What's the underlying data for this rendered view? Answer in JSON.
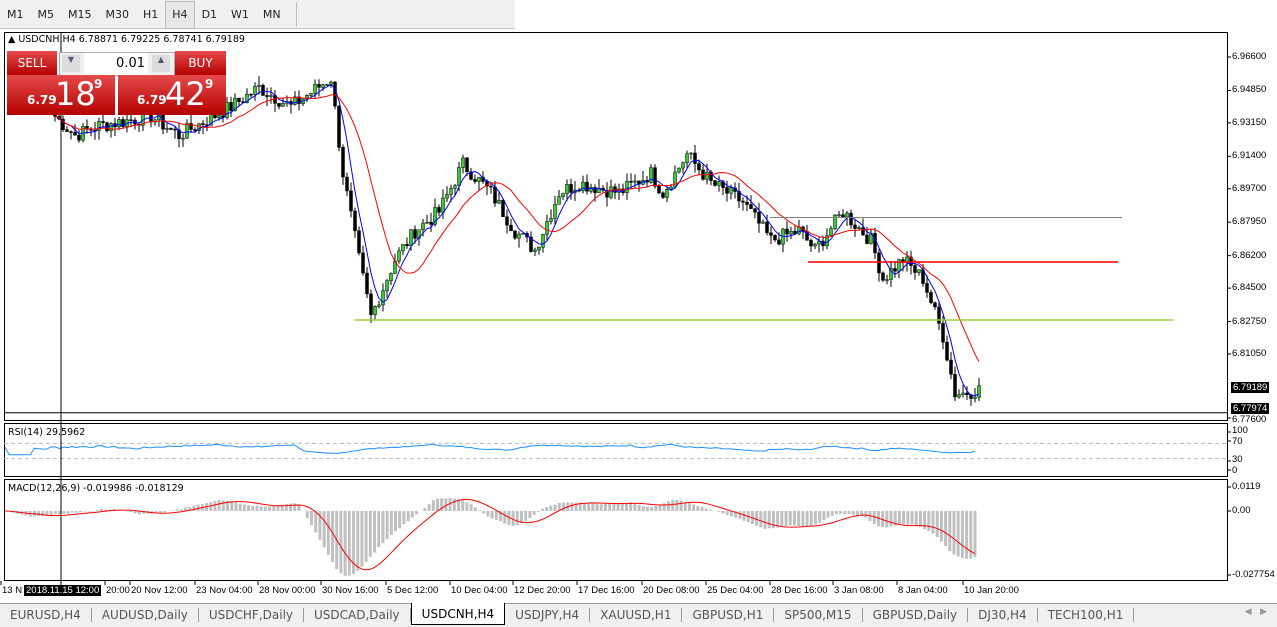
{
  "timeframes": {
    "items": [
      "M1",
      "M5",
      "M15",
      "M30",
      "H1",
      "H4",
      "D1",
      "W1",
      "MN"
    ],
    "selected": "H4"
  },
  "chart": {
    "symbol_line": "USDCNH,H4  6.78871 6.79225 6.78741 6.79189",
    "trade_panel": {
      "sell_label": "SELL",
      "buy_label": "BUY",
      "lot": "0.01",
      "sell_big": "6.79",
      "sell_pips": "18",
      "sell_sup": "9",
      "buy_big": "6.79",
      "buy_pips": "42",
      "buy_sup": "9"
    },
    "price_ticks": [
      "6.96600",
      "6.94850",
      "6.93150",
      "6.91400",
      "6.89700",
      "6.87950",
      "6.86200",
      "6.84500",
      "6.82750",
      "6.81050",
      "6.77600"
    ],
    "current_price_tag": "6.79189",
    "line_tag": "6.77974",
    "rsi": {
      "label": "RSI(14) 29.5962",
      "ticks": [
        "100",
        "70",
        "30",
        "0"
      ],
      "levels": [
        70,
        30
      ],
      "color": "#1e90ff"
    },
    "macd": {
      "label": "MACD(12,26,9) -0.019986 -0.018129",
      "ticks": [
        "0.0119",
        "0.00",
        "-0.027754"
      ],
      "hist_color": "#c0c0c0",
      "signal_color": "#ff0000"
    },
    "crosshair_time": "2018.11.15 12:00",
    "time_labels": [
      "13 N",
      "20:00",
      "20 Nov 12:00",
      "23 Nov 04:00",
      "28 Nov 00:00",
      "30 Nov 16:00",
      "5 Dec 12:00",
      "10 Dec 04:00",
      "12 Dec 20:00",
      "17 Dec 16:00",
      "20 Dec 08:00",
      "25 Dec 04:00",
      "28 Dec 16:00",
      "3 Jan 08:00",
      "8 Jan 04:00",
      "10 Jan 20:00"
    ],
    "colors": {
      "bull": "#32cd32",
      "bear": "#32cd32",
      "ma_fast": "#0000ff",
      "ma_slow": "#ff0000"
    },
    "hlines": [
      {
        "price": 6.882,
        "color": "#808080"
      },
      {
        "price": 6.8587,
        "color": "#ff0000"
      },
      {
        "price": 6.8283,
        "color": "#9acd32"
      },
      {
        "price": 6.77974,
        "color": "#000000"
      }
    ]
  },
  "chart_data": {
    "type": "candlestick",
    "approx_close_keypoints": [
      [
        0,
        6.935
      ],
      [
        5,
        6.925
      ],
      [
        11,
        6.93
      ],
      [
        24,
        6.935
      ],
      [
        31,
        6.925
      ],
      [
        44,
        6.94
      ],
      [
        51,
        6.95
      ],
      [
        59,
        6.94
      ],
      [
        69,
        6.955
      ],
      [
        72,
        6.905
      ],
      [
        76,
        6.86
      ],
      [
        79,
        6.83
      ],
      [
        85,
        6.86
      ],
      [
        90,
        6.875
      ],
      [
        96,
        6.885
      ],
      [
        102,
        6.91
      ],
      [
        109,
        6.895
      ],
      [
        115,
        6.875
      ],
      [
        120,
        6.865
      ],
      [
        126,
        6.895
      ],
      [
        131,
        6.9
      ],
      [
        141,
        6.895
      ],
      [
        149,
        6.905
      ],
      [
        152,
        6.895
      ],
      [
        158,
        6.915
      ],
      [
        164,
        6.9
      ],
      [
        172,
        6.89
      ],
      [
        179,
        6.87
      ],
      [
        186,
        6.875
      ],
      [
        190,
        6.865
      ],
      [
        197,
        6.885
      ],
      [
        204,
        6.87
      ],
      [
        207,
        6.85
      ],
      [
        212,
        6.86
      ],
      [
        217,
        6.85
      ],
      [
        222,
        6.82
      ],
      [
        225,
        6.79
      ],
      [
        227,
        6.79
      ],
      [
        231,
        6.792
      ]
    ],
    "ylim": [
      6.776,
      6.976
    ]
  },
  "tabs": {
    "items": [
      "EURUSD,H4",
      "AUDUSD,Daily",
      "USDCHF,Daily",
      "USDCAD,Daily",
      "USDCNH,H4",
      "USDJPY,H4",
      "XAUUSD,H1",
      "GBPUSD,H1",
      "SP500,M15",
      "GBPUSD,Daily",
      "DJ30,H4",
      "TECH100,H1"
    ],
    "selected": "USDCNH,H4"
  }
}
